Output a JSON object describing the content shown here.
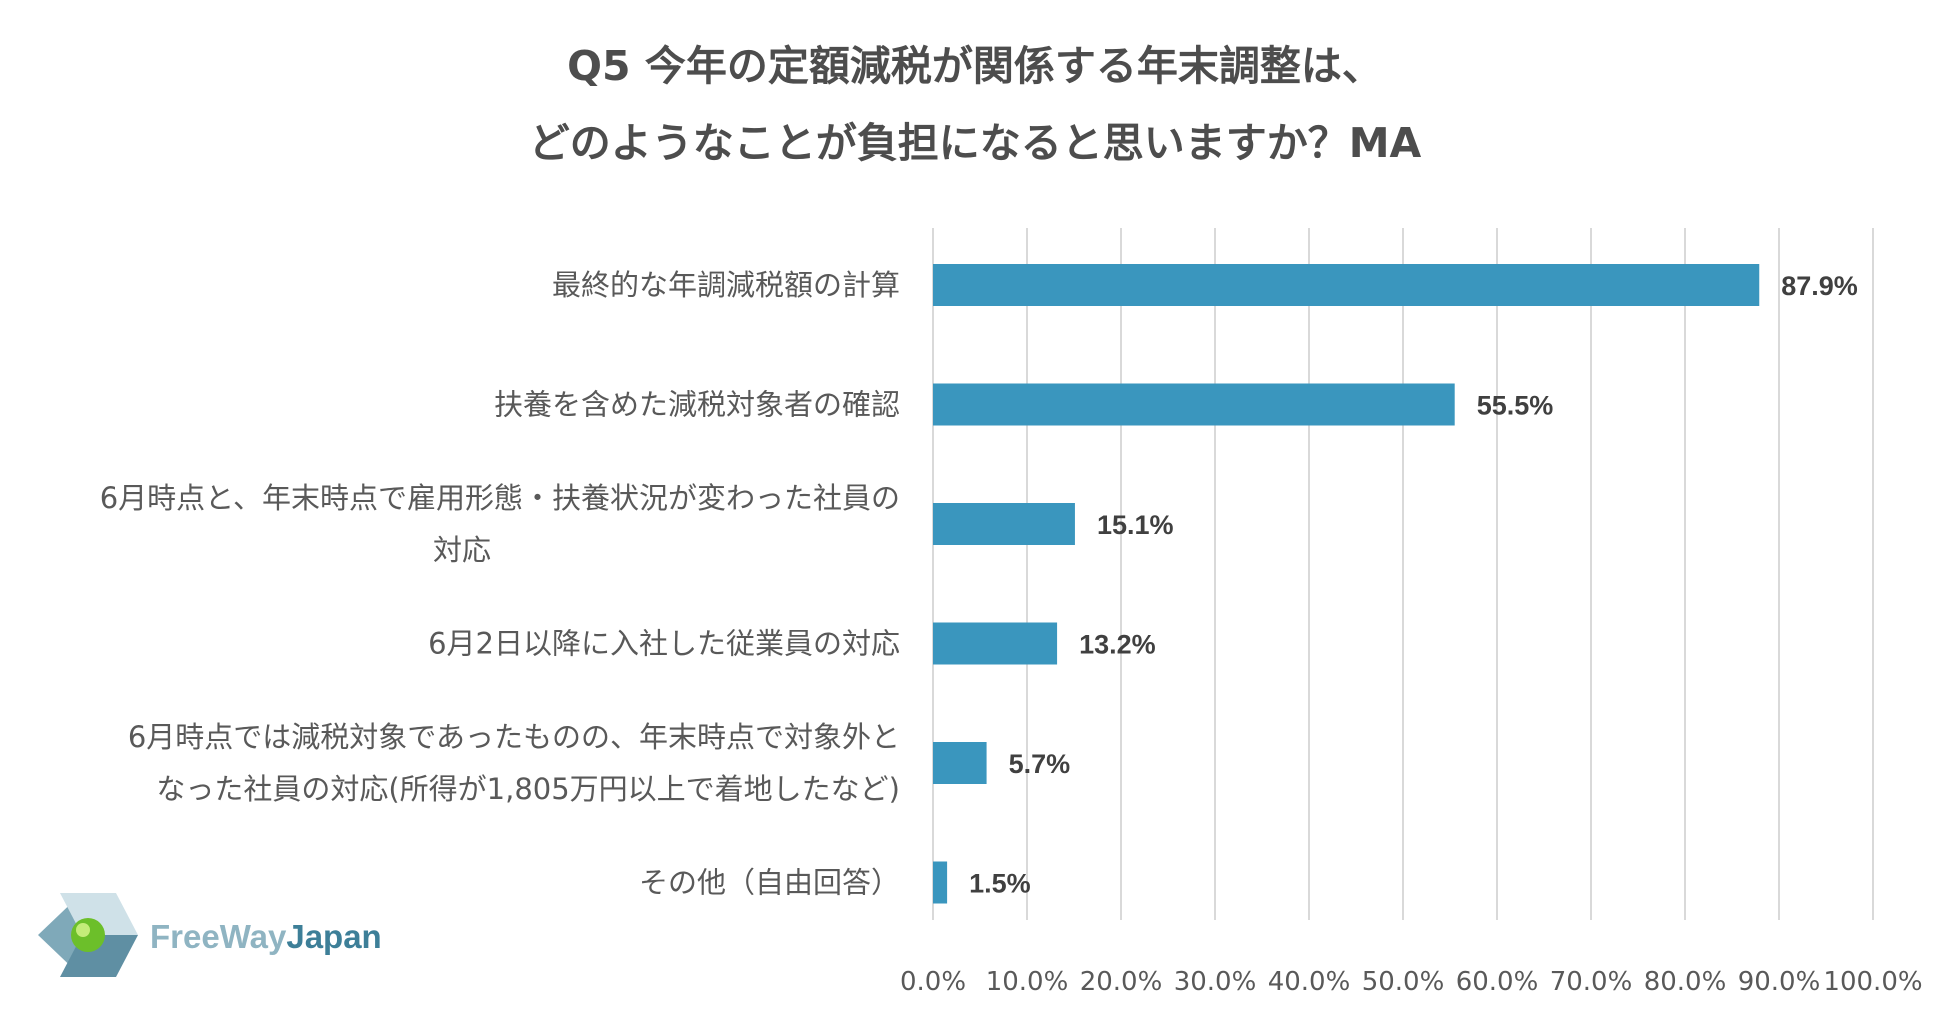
{
  "chart_data": {
    "type": "bar",
    "orientation": "horizontal",
    "title_lines": [
      "Q5 今年の定額減税が関係する年末調整は、",
      "どのようなことが負担になると思いますか？MA"
    ],
    "categories": [
      [
        "最終的な年調減税額の計算"
      ],
      [
        "扶養を含めた減税対象者の確認"
      ],
      [
        "6月時点と、年末時点で雇用形態・扶養状況が変わった社員の",
        "対応"
      ],
      [
        "6月2日以降に入社した従業員の対応"
      ],
      [
        "6月時点では減税対象であったものの、年末時点で対象外と",
        "なった社員の対応(所得が1,805万円以上で着地したなど)"
      ],
      [
        "その他（自由回答）"
      ]
    ],
    "values": [
      87.9,
      55.5,
      15.1,
      13.2,
      5.7,
      1.5
    ],
    "data_labels": [
      "87.9%",
      "55.5%",
      "15.1%",
      "13.2%",
      "5.7%",
      "1.5%"
    ],
    "xlim": [
      0,
      100
    ],
    "ticks": [
      0,
      10,
      20,
      30,
      40,
      50,
      60,
      70,
      80,
      90,
      100
    ],
    "tick_labels": [
      "0.0%",
      "10.0%",
      "20.0%",
      "30.0%",
      "40.0%",
      "50.0%",
      "60.0%",
      "70.0%",
      "80.0%",
      "90.0%",
      "100.0%"
    ],
    "grid": true,
    "bar_color": "#3a96be"
  },
  "logo": {
    "text_part1": "FreeWay",
    "text_part2": "Japan",
    "icon": "freewayjapan-logo-icon",
    "color_part1": "#8fb4c2",
    "color_part2": "#3d7f98"
  }
}
